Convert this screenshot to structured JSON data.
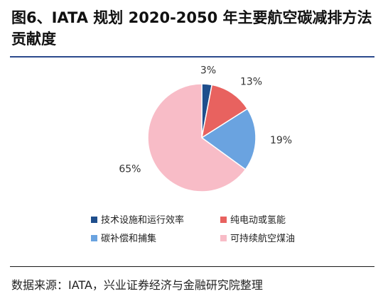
{
  "title": "图6、IATA 规划 2020-2050 年主要航空碳减排方法贡献度",
  "source": "数据来源：IATA，兴业证券经济与金融研究院整理",
  "chart_data": {
    "type": "pie",
    "title": "图6、IATA 规划 2020-2050 年主要航空碳减排方法贡献度",
    "legend_position": "bottom",
    "slices": [
      {
        "name": "技术设施和运行效率",
        "value": 3,
        "label": "3%",
        "color": "#1f4e8c"
      },
      {
        "name": "纯电动或氢能",
        "value": 13,
        "label": "13%",
        "color": "#e8625f"
      },
      {
        "name": "碳补偿和捕集",
        "value": 19,
        "label": "19%",
        "color": "#6aa3e0"
      },
      {
        "name": "可持续航空煤油",
        "value": 65,
        "label": "65%",
        "color": "#f8bcc7"
      }
    ]
  }
}
